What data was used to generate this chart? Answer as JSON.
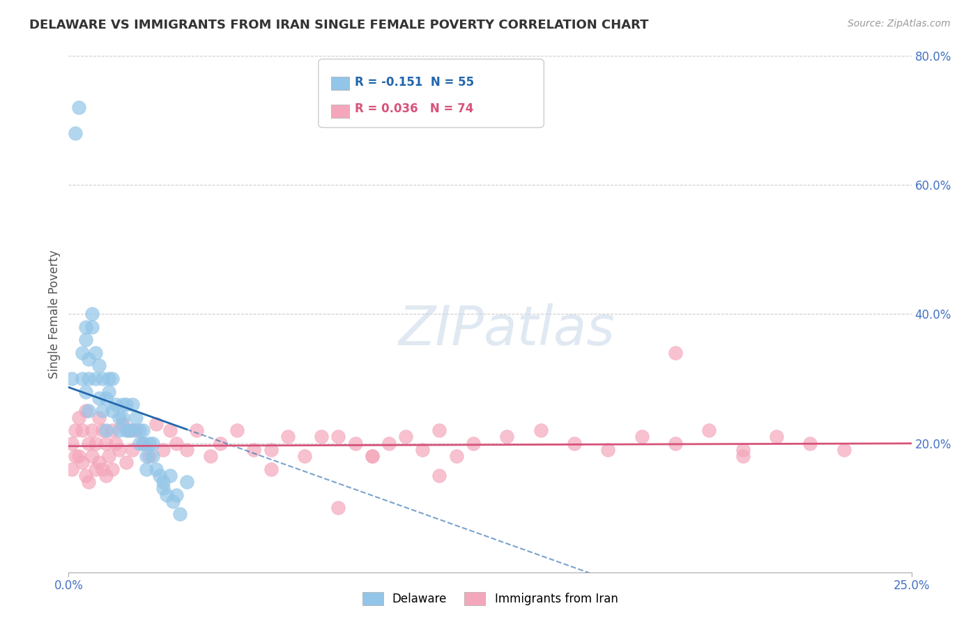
{
  "title": "DELAWARE VS IMMIGRANTS FROM IRAN SINGLE FEMALE POVERTY CORRELATION CHART",
  "source": "Source: ZipAtlas.com",
  "ylabel": "Single Female Poverty",
  "legend_delaware": "Delaware",
  "legend_iran": "Immigrants from Iran",
  "R_delaware": -0.151,
  "N_delaware": 55,
  "R_iran": 0.036,
  "N_iran": 74,
  "blue_color": "#92c5e8",
  "pink_color": "#f4a7bb",
  "blue_line_color": "#2166ac",
  "pink_line_color": "#d6537a",
  "bg_color": "#ffffff",
  "xlim": [
    0.0,
    0.25
  ],
  "ylim": [
    0.0,
    0.8
  ],
  "yticks": [
    0.0,
    0.2,
    0.4,
    0.6,
    0.8
  ],
  "ylabels": [
    "",
    "20.0%",
    "40.0%",
    "60.0%",
    "80.0%"
  ],
  "xtick_left": "0.0%",
  "xtick_right": "25.0%",
  "del_x": [
    0.001,
    0.002,
    0.003,
    0.004,
    0.004,
    0.005,
    0.005,
    0.005,
    0.006,
    0.006,
    0.006,
    0.007,
    0.007,
    0.008,
    0.008,
    0.009,
    0.009,
    0.01,
    0.01,
    0.011,
    0.011,
    0.012,
    0.012,
    0.013,
    0.013,
    0.014,
    0.015,
    0.015,
    0.016,
    0.016,
    0.017,
    0.017,
    0.018,
    0.019,
    0.019,
    0.02,
    0.021,
    0.021,
    0.022,
    0.022,
    0.023,
    0.023,
    0.024,
    0.025,
    0.025,
    0.026,
    0.027,
    0.028,
    0.028,
    0.029,
    0.03,
    0.031,
    0.032,
    0.033,
    0.035
  ],
  "del_y": [
    0.3,
    0.68,
    0.72,
    0.34,
    0.3,
    0.38,
    0.36,
    0.28,
    0.33,
    0.25,
    0.3,
    0.4,
    0.38,
    0.34,
    0.3,
    0.27,
    0.32,
    0.3,
    0.25,
    0.27,
    0.22,
    0.3,
    0.28,
    0.25,
    0.3,
    0.26,
    0.24,
    0.22,
    0.26,
    0.24,
    0.26,
    0.22,
    0.22,
    0.26,
    0.22,
    0.24,
    0.2,
    0.22,
    0.2,
    0.22,
    0.18,
    0.16,
    0.2,
    0.2,
    0.18,
    0.16,
    0.15,
    0.13,
    0.14,
    0.12,
    0.15,
    0.11,
    0.12,
    0.09,
    0.14
  ],
  "iran_x": [
    0.001,
    0.001,
    0.002,
    0.002,
    0.003,
    0.003,
    0.004,
    0.004,
    0.005,
    0.005,
    0.006,
    0.006,
    0.007,
    0.007,
    0.008,
    0.008,
    0.009,
    0.009,
    0.01,
    0.01,
    0.011,
    0.011,
    0.012,
    0.013,
    0.013,
    0.014,
    0.015,
    0.016,
    0.017,
    0.018,
    0.019,
    0.02,
    0.022,
    0.024,
    0.026,
    0.028,
    0.03,
    0.032,
    0.035,
    0.038,
    0.042,
    0.045,
    0.05,
    0.055,
    0.06,
    0.065,
    0.07,
    0.075,
    0.08,
    0.085,
    0.09,
    0.095,
    0.1,
    0.105,
    0.11,
    0.115,
    0.12,
    0.13,
    0.14,
    0.15,
    0.16,
    0.17,
    0.18,
    0.19,
    0.2,
    0.21,
    0.22,
    0.23,
    0.18,
    0.2,
    0.09,
    0.11,
    0.06,
    0.08
  ],
  "iran_y": [
    0.2,
    0.16,
    0.22,
    0.18,
    0.18,
    0.24,
    0.17,
    0.22,
    0.15,
    0.25,
    0.14,
    0.2,
    0.18,
    0.22,
    0.16,
    0.2,
    0.17,
    0.24,
    0.16,
    0.22,
    0.15,
    0.2,
    0.18,
    0.22,
    0.16,
    0.2,
    0.19,
    0.23,
    0.17,
    0.22,
    0.19,
    0.22,
    0.2,
    0.18,
    0.23,
    0.19,
    0.22,
    0.2,
    0.19,
    0.22,
    0.18,
    0.2,
    0.22,
    0.19,
    0.16,
    0.21,
    0.18,
    0.21,
    0.21,
    0.2,
    0.18,
    0.2,
    0.21,
    0.19,
    0.22,
    0.18,
    0.2,
    0.21,
    0.22,
    0.2,
    0.19,
    0.21,
    0.2,
    0.22,
    0.19,
    0.21,
    0.2,
    0.19,
    0.34,
    0.18,
    0.18,
    0.15,
    0.19,
    0.1
  ]
}
